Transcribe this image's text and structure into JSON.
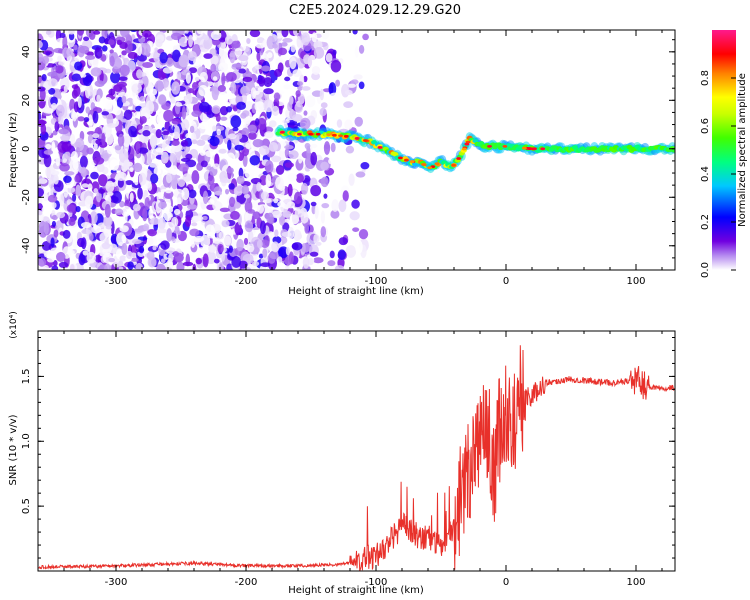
{
  "title": "C2E5.2024.029.12.29.G20",
  "chart_data": [
    {
      "type": "heatmap",
      "title": "C2E5.2024.029.12.29.G20",
      "xlabel": "Height of straight line (km)",
      "ylabel": "Frequency (Hz)",
      "xlim": [
        -360,
        130
      ],
      "ylim": [
        -50,
        49
      ],
      "x_ticks": [
        -300,
        -200,
        -100,
        0,
        100
      ],
      "x_tick_labels": [
        "-300",
        "-200",
        "-100",
        "0",
        "100"
      ],
      "y_ticks": [
        -40,
        -20,
        0,
        20,
        40
      ],
      "y_tick_labels": [
        "-40",
        "-20",
        "0",
        "20",
        "40"
      ],
      "colorbar": {
        "label": "Normalized spectral amplitude",
        "range": [
          0,
          1
        ],
        "ticks": [
          0.0,
          0.2,
          0.4,
          0.6,
          0.8
        ],
        "tick_labels": [
          "0.0",
          "0.2",
          "0.4",
          "0.6",
          "0.8"
        ],
        "colors": [
          "#ffffff",
          "#8a2be2",
          "#0000ff",
          "#00ffff",
          "#00ff00",
          "#ffff00",
          "#ff8000",
          "#ff0000",
          "#ff1493"
        ]
      },
      "noise_region": {
        "x_range": [
          -360,
          -120
        ],
        "y_range": [
          -50,
          49
        ]
      },
      "signal_ridge": {
        "x": [
          -175,
          -160,
          -140,
          -120,
          -105,
          -95,
          -85,
          -75,
          -65,
          -58,
          -50,
          -42,
          -35,
          -28,
          -22,
          -15,
          -5,
          0,
          20,
          60,
          100,
          130
        ],
        "y": [
          7,
          6,
          6,
          5,
          3,
          0,
          -3,
          -5,
          -6,
          -8,
          -5,
          -8,
          -3,
          4,
          2,
          1,
          1,
          1,
          0,
          0,
          0,
          0
        ]
      },
      "grid": false
    },
    {
      "type": "line",
      "xlabel": "Height of straight line (km)",
      "ylabel": "SNR (10 * v/v)",
      "scale_label": "(x10⁴)",
      "xlim": [
        -360,
        130
      ],
      "ylim": [
        0,
        1.85
      ],
      "x_ticks": [
        -300,
        -200,
        -100,
        0,
        100
      ],
      "x_tick_labels": [
        "-300",
        "-200",
        "-100",
        "0",
        "100"
      ],
      "y_ticks": [
        0.5,
        1.0,
        1.5
      ],
      "y_tick_labels": [
        "0.5",
        "1.0",
        "1.5"
      ],
      "color": "#e8302a",
      "x": [
        -360,
        -300,
        -240,
        -200,
        -160,
        -130,
        -115,
        -100,
        -90,
        -80,
        -70,
        -60,
        -50,
        -40,
        -30,
        -20,
        -15,
        -10,
        -5,
        0,
        5,
        10,
        20,
        30,
        50,
        80,
        100,
        110,
        130
      ],
      "y": [
        0.03,
        0.04,
        0.06,
        0.04,
        0.04,
        0.05,
        0.07,
        0.12,
        0.22,
        0.35,
        0.28,
        0.25,
        0.2,
        0.35,
        0.8,
        1.0,
        0.95,
        0.75,
        1.05,
        1.2,
        1.1,
        1.35,
        1.35,
        1.45,
        1.48,
        1.45,
        1.47,
        1.42,
        1.41
      ]
    }
  ]
}
